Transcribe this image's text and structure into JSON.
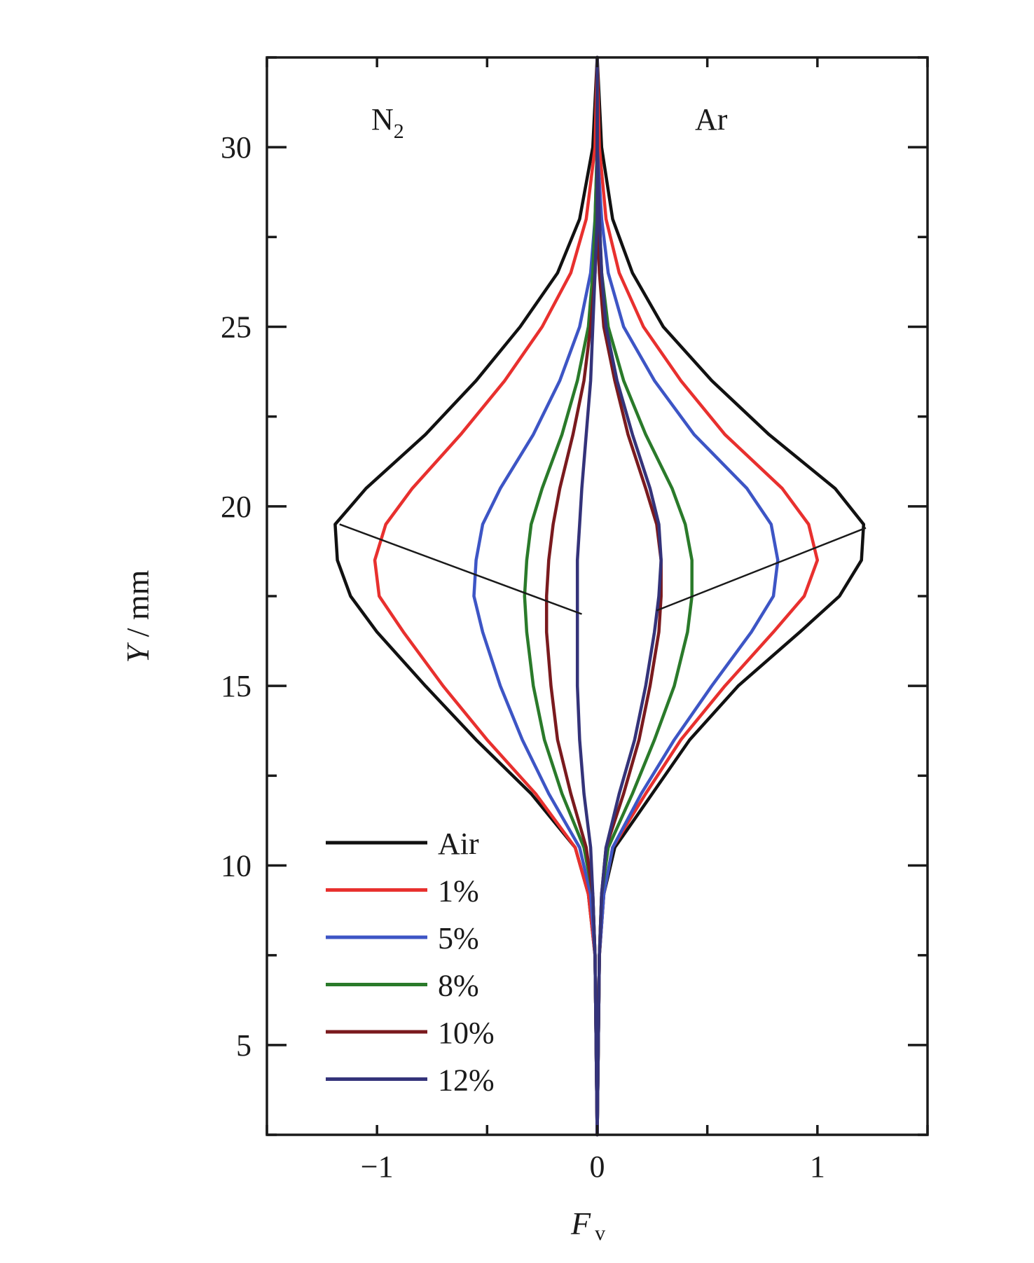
{
  "chart_data": {
    "type": "line",
    "title": "",
    "xlabel": {
      "main": "F",
      "sub": "v"
    },
    "ylabel": {
      "italic": "Y",
      "rest": " / mm"
    },
    "xlim": [
      -1.5,
      1.5
    ],
    "ylim": [
      2.5,
      32.5
    ],
    "x_ticks": [
      -1,
      0,
      1
    ],
    "x_tick_labels": [
      "−1",
      "0",
      "1"
    ],
    "x_minor_ticks": [
      -1.5,
      -1,
      -0.5,
      0,
      0.5,
      1,
      1.5
    ],
    "y_ticks": [
      5,
      10,
      15,
      20,
      25,
      30
    ],
    "y_tick_labels": [
      "5",
      "10",
      "15",
      "20",
      "25",
      "30"
    ],
    "y_minor_ticks": [
      2.5,
      5,
      7.5,
      10,
      12.5,
      15,
      17.5,
      20,
      22.5,
      25,
      27.5,
      30,
      32.5
    ],
    "grid": false,
    "legend_position": "bottom-left",
    "annotations": {
      "left_panel": {
        "main": "N",
        "sub": "2"
      },
      "right_panel": "Ar"
    },
    "peak_trend_lines": [
      {
        "side": "N2",
        "points": [
          [
            -1.17,
            19.5
          ],
          [
            -0.07,
            17.0
          ]
        ]
      },
      {
        "side": "Ar",
        "points": [
          [
            0.27,
            17.1
          ],
          [
            1.22,
            19.4
          ]
        ]
      }
    ],
    "series": [
      {
        "name": "Air",
        "color": "#111111",
        "Y": [
          2.5,
          7.5,
          9.2,
          10.5,
          12.0,
          13.5,
          15.0,
          16.5,
          17.5,
          18.5,
          19.5,
          20.5,
          22.0,
          23.5,
          25.0,
          26.5,
          28.0,
          30.0,
          32.5
        ],
        "n2": [
          0,
          -0.01,
          -0.04,
          -0.1,
          -0.3,
          -0.55,
          -0.78,
          -1.0,
          -1.12,
          -1.18,
          -1.19,
          -1.05,
          -0.78,
          -0.55,
          -0.35,
          -0.18,
          -0.08,
          -0.02,
          0
        ],
        "ar": [
          0,
          0.01,
          0.03,
          0.08,
          0.25,
          0.42,
          0.64,
          0.92,
          1.1,
          1.2,
          1.21,
          1.08,
          0.78,
          0.52,
          0.3,
          0.16,
          0.07,
          0.02,
          0
        ]
      },
      {
        "name": "1%",
        "color": "#e8302e",
        "Y": [
          2.5,
          7.5,
          9.2,
          10.5,
          12.0,
          13.5,
          15.0,
          16.5,
          17.5,
          18.5,
          19.5,
          20.5,
          22.0,
          23.5,
          25.0,
          26.5,
          28.0,
          30.0,
          32.5
        ],
        "n2": [
          0,
          -0.01,
          -0.04,
          -0.1,
          -0.28,
          -0.5,
          -0.7,
          -0.88,
          -0.99,
          -1.01,
          -0.96,
          -0.84,
          -0.62,
          -0.42,
          -0.25,
          -0.12,
          -0.05,
          -0.01,
          0
        ],
        "ar": [
          0,
          0.01,
          0.03,
          0.07,
          0.22,
          0.38,
          0.58,
          0.8,
          0.94,
          1.0,
          0.96,
          0.84,
          0.58,
          0.38,
          0.21,
          0.1,
          0.04,
          0.01,
          0
        ]
      },
      {
        "name": "5%",
        "color": "#3d55c5",
        "Y": [
          2.5,
          7.5,
          9.2,
          10.5,
          12.0,
          13.5,
          15.0,
          16.5,
          17.5,
          18.5,
          19.5,
          20.5,
          22.0,
          23.5,
          25.0,
          26.5,
          28.0,
          30.0,
          32.5
        ],
        "n2": [
          0,
          -0.01,
          -0.03,
          -0.08,
          -0.22,
          -0.34,
          -0.44,
          -0.52,
          -0.56,
          -0.55,
          -0.52,
          -0.44,
          -0.29,
          -0.17,
          -0.08,
          -0.03,
          -0.01,
          0,
          0
        ],
        "ar": [
          0,
          0.01,
          0.03,
          0.07,
          0.2,
          0.35,
          0.52,
          0.7,
          0.8,
          0.82,
          0.79,
          0.68,
          0.44,
          0.26,
          0.12,
          0.05,
          0.02,
          0,
          0
        ]
      },
      {
        "name": "8%",
        "color": "#2a7a2a",
        "Y": [
          2.5,
          7.5,
          9.2,
          10.5,
          12.0,
          13.5,
          15.0,
          16.5,
          17.5,
          18.5,
          19.5,
          20.5,
          22.0,
          23.5,
          25.0,
          26.5,
          28.0,
          30.0,
          32.5
        ],
        "n2": [
          0,
          -0.01,
          -0.02,
          -0.06,
          -0.16,
          -0.24,
          -0.29,
          -0.32,
          -0.33,
          -0.32,
          -0.3,
          -0.25,
          -0.16,
          -0.09,
          -0.04,
          -0.02,
          -0.01,
          0,
          0
        ],
        "ar": [
          0,
          0.01,
          0.02,
          0.05,
          0.16,
          0.26,
          0.35,
          0.41,
          0.43,
          0.43,
          0.4,
          0.34,
          0.22,
          0.12,
          0.05,
          0.02,
          0.01,
          0,
          0
        ]
      },
      {
        "name": "10%",
        "color": "#7a1a1e",
        "Y": [
          2.5,
          7.5,
          9.2,
          10.5,
          12.0,
          13.5,
          15.0,
          16.5,
          17.5,
          18.5,
          19.5,
          20.5,
          22.0,
          23.5,
          25.0,
          26.5,
          28.0,
          30.0,
          32.5
        ],
        "n2": [
          0,
          -0.01,
          -0.02,
          -0.05,
          -0.12,
          -0.18,
          -0.21,
          -0.23,
          -0.23,
          -0.22,
          -0.2,
          -0.17,
          -0.11,
          -0.06,
          -0.03,
          -0.01,
          0,
          0,
          0
        ],
        "ar": [
          0,
          0.01,
          0.02,
          0.04,
          0.12,
          0.19,
          0.24,
          0.28,
          0.29,
          0.29,
          0.27,
          0.22,
          0.14,
          0.08,
          0.03,
          0.01,
          0,
          0,
          0
        ]
      },
      {
        "name": "12%",
        "color": "#34337a",
        "Y": [
          2.5,
          7.5,
          9.2,
          10.5,
          12.0,
          13.5,
          15.0,
          16.5,
          17.5,
          18.5,
          19.5,
          20.5,
          22.0,
          23.5,
          25.0,
          26.5,
          28.0,
          30.0,
          32.5
        ],
        "n2": [
          0,
          -0.01,
          -0.02,
          -0.03,
          -0.06,
          -0.08,
          -0.09,
          -0.09,
          -0.09,
          -0.09,
          -0.08,
          -0.07,
          -0.05,
          -0.03,
          -0.02,
          -0.01,
          0,
          0,
          0
        ],
        "ar": [
          0,
          0.01,
          0.02,
          0.04,
          0.1,
          0.17,
          0.22,
          0.26,
          0.28,
          0.29,
          0.28,
          0.24,
          0.16,
          0.09,
          0.04,
          0.02,
          0.01,
          0,
          0
        ]
      }
    ]
  }
}
